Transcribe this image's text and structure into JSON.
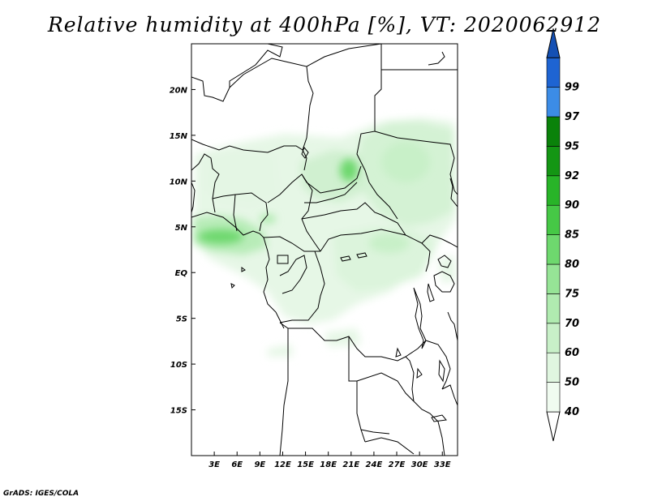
{
  "title": "Relative humidity at 400hPa [%], VT: 2020062912",
  "credit": "GrADS: IGES/COLA",
  "map": {
    "lon_range": [
      0,
      35
    ],
    "lat_range": [
      -20,
      25
    ],
    "lon_ticks": [
      {
        "value": 3,
        "label": "3E"
      },
      {
        "value": 6,
        "label": "6E"
      },
      {
        "value": 9,
        "label": "9E"
      },
      {
        "value": 12,
        "label": "12E"
      },
      {
        "value": 15,
        "label": "15E"
      },
      {
        "value": 18,
        "label": "18E"
      },
      {
        "value": 21,
        "label": "21E"
      },
      {
        "value": 24,
        "label": "24E"
      },
      {
        "value": 27,
        "label": "27E"
      },
      {
        "value": 30,
        "label": "30E"
      },
      {
        "value": 33,
        "label": "33E"
      }
    ],
    "lat_ticks": [
      {
        "value": 20,
        "label": "20N"
      },
      {
        "value": 15,
        "label": "15N"
      },
      {
        "value": 10,
        "label": "10N"
      },
      {
        "value": 5,
        "label": "5N"
      },
      {
        "value": 0,
        "label": "EQ"
      },
      {
        "value": -5,
        "label": "5S"
      },
      {
        "value": -10,
        "label": "10S"
      },
      {
        "value": -15,
        "label": "15S"
      }
    ]
  },
  "colorbar": {
    "levels": [
      {
        "label": "40",
        "color": "#f0fbf0"
      },
      {
        "label": "50",
        "color": "#e0f6e0"
      },
      {
        "label": "60",
        "color": "#c8f0c8"
      },
      {
        "label": "70",
        "color": "#b0ebb0"
      },
      {
        "label": "75",
        "color": "#96e496"
      },
      {
        "label": "80",
        "color": "#6ed86e"
      },
      {
        "label": "85",
        "color": "#46c846"
      },
      {
        "label": "90",
        "color": "#28b428"
      },
      {
        "label": "92",
        "color": "#149614"
      },
      {
        "label": "95",
        "color": "#0a820a"
      },
      {
        "label": "97",
        "color": "#3c8ce6"
      },
      {
        "label": "99",
        "color": "#1e64d2"
      }
    ],
    "top_color": "#1450b4"
  }
}
